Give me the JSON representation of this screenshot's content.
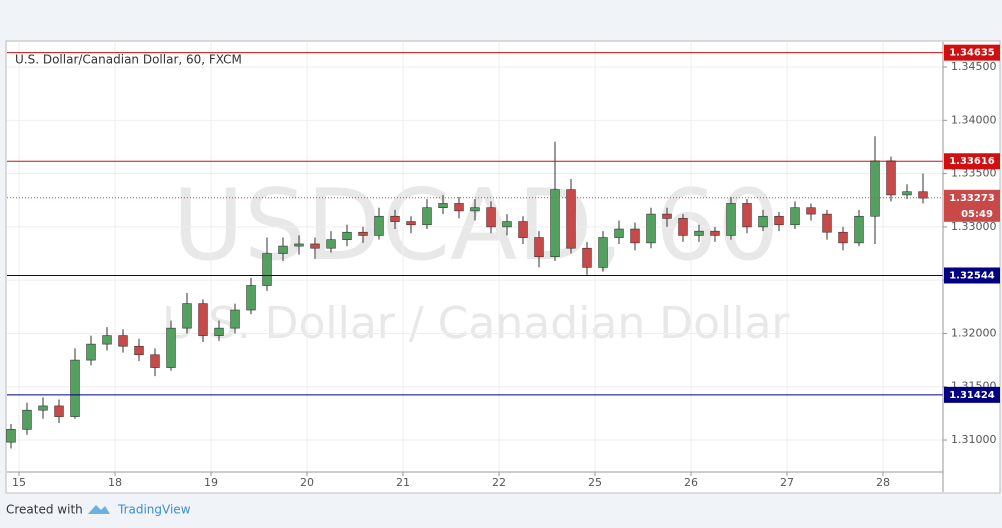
{
  "chart_data": {
    "type": "candlestick",
    "title": "U.S. Dollar/Canadian Dollar, 60, FXCM",
    "watermark": [
      "USDCAD, 60",
      "U.S. Dollar / Canadian Dollar"
    ],
    "x": [
      1,
      5,
      9,
      13,
      17,
      21,
      25,
      29,
      33,
      37,
      41,
      45,
      49,
      53,
      57,
      61,
      65,
      69,
      73,
      77,
      81,
      85,
      89,
      93,
      97,
      101,
      105,
      109,
      113,
      117,
      121,
      125,
      129,
      133,
      137,
      141,
      145,
      149,
      153,
      157,
      161,
      165,
      169,
      173,
      177,
      181,
      185,
      189,
      193,
      197,
      201,
      205,
      209,
      213,
      217,
      221,
      225,
      229
    ],
    "open": [
      1.3098,
      1.311,
      1.3128,
      1.3132,
      1.3122,
      1.3175,
      1.319,
      1.3198,
      1.3188,
      1.318,
      1.3168,
      1.3205,
      1.3228,
      1.3198,
      1.3205,
      1.3222,
      1.3245,
      1.3275,
      1.3282,
      1.3284,
      1.328,
      1.3288,
      1.3295,
      1.3292,
      1.331,
      1.3305,
      1.3302,
      1.3318,
      1.3322,
      1.3315,
      1.3318,
      1.33,
      1.3305,
      1.329,
      1.3272,
      1.3335,
      1.328,
      1.3262,
      1.329,
      1.3298,
      1.3285,
      1.3312,
      1.3308,
      1.3292,
      1.3296,
      1.3292,
      1.3322,
      1.33,
      1.331,
      1.3302,
      1.3318,
      1.3312,
      1.3295,
      1.3285,
      1.331,
      1.3362,
      1.333,
      1.3333
    ],
    "high": [
      1.3115,
      1.3135,
      1.314,
      1.3138,
      1.3186,
      1.3198,
      1.3206,
      1.3204,
      1.3195,
      1.3186,
      1.3212,
      1.3238,
      1.3232,
      1.3212,
      1.3228,
      1.3252,
      1.329,
      1.329,
      1.3292,
      1.329,
      1.3296,
      1.3302,
      1.33,
      1.3318,
      1.3316,
      1.331,
      1.3326,
      1.333,
      1.3328,
      1.3326,
      1.3324,
      1.3312,
      1.331,
      1.3296,
      1.338,
      1.3345,
      1.3286,
      1.3296,
      1.3306,
      1.3304,
      1.3318,
      1.3318,
      1.3312,
      1.3302,
      1.33,
      1.3328,
      1.3326,
      1.3316,
      1.3314,
      1.3324,
      1.3322,
      1.3316,
      1.33,
      1.3316,
      1.3385,
      1.3366,
      1.334,
      1.335
    ],
    "low": [
      1.3092,
      1.3105,
      1.312,
      1.3116,
      1.312,
      1.317,
      1.3184,
      1.3182,
      1.3174,
      1.316,
      1.3165,
      1.32,
      1.3192,
      1.3193,
      1.32,
      1.3218,
      1.324,
      1.3268,
      1.3274,
      1.327,
      1.3276,
      1.3282,
      1.3285,
      1.3288,
      1.3298,
      1.3294,
      1.3298,
      1.3312,
      1.3308,
      1.3306,
      1.3294,
      1.3292,
      1.3284,
      1.3262,
      1.3268,
      1.3275,
      1.3255,
      1.3258,
      1.3284,
      1.3278,
      1.328,
      1.33,
      1.3286,
      1.3286,
      1.3286,
      1.3288,
      1.3294,
      1.3296,
      1.3296,
      1.3298,
      1.3306,
      1.3288,
      1.3278,
      1.3282,
      1.3284,
      1.3324,
      1.3326,
      1.3322
    ],
    "close": [
      1.311,
      1.3128,
      1.3132,
      1.3122,
      1.3175,
      1.319,
      1.3198,
      1.3188,
      1.318,
      1.3168,
      1.3205,
      1.3228,
      1.3198,
      1.3205,
      1.3222,
      1.3245,
      1.3275,
      1.3282,
      1.3284,
      1.328,
      1.3288,
      1.3295,
      1.3292,
      1.331,
      1.3305,
      1.3302,
      1.3318,
      1.3322,
      1.3315,
      1.3318,
      1.33,
      1.3305,
      1.329,
      1.3272,
      1.3335,
      1.328,
      1.3262,
      1.329,
      1.3298,
      1.3285,
      1.3312,
      1.3308,
      1.3292,
      1.3296,
      1.3292,
      1.3322,
      1.33,
      1.331,
      1.3302,
      1.3318,
      1.3312,
      1.3295,
      1.3285,
      1.331,
      1.3362,
      1.333,
      1.3333,
      1.3327
    ],
    "up_color": "#53a15e",
    "down_color": "#c94848",
    "xlim": [
      0,
      234
    ],
    "ylim": [
      1.307,
      1.34735
    ],
    "xticks": [
      {
        "value": 3,
        "label": "15"
      },
      {
        "value": 27,
        "label": "18"
      },
      {
        "value": 51,
        "label": "19"
      },
      {
        "value": 75,
        "label": "20"
      },
      {
        "value": 99,
        "label": "21"
      },
      {
        "value": 123,
        "label": "22"
      },
      {
        "value": 147,
        "label": "25"
      },
      {
        "value": 171,
        "label": "26"
      },
      {
        "value": 195,
        "label": "27"
      },
      {
        "value": 219,
        "label": "28"
      }
    ],
    "yticks": [
      {
        "value": 1.31,
        "label": "1.31000"
      },
      {
        "value": 1.315,
        "label": "1.31500"
      },
      {
        "value": 1.32,
        "label": "1.32000"
      },
      {
        "value": 1.325,
        "label": "1.32500"
      },
      {
        "value": 1.33,
        "label": "1.33000"
      },
      {
        "value": 1.335,
        "label": "1.33500"
      },
      {
        "value": 1.34,
        "label": "1.34000"
      },
      {
        "value": 1.345,
        "label": "1.34500"
      }
    ],
    "grid": true,
    "levels": [
      {
        "value": 1.34635,
        "color": "#d01010"
      },
      {
        "value": 1.33616,
        "color": "#d01010"
      },
      {
        "value": 1.32544,
        "color": "#000080"
      },
      {
        "value": 1.31424,
        "color": "#000080"
      }
    ],
    "last": {
      "value": 1.33273,
      "countdown": "05:49",
      "color": "#c94848"
    }
  },
  "footer": {
    "created_with": "Created with",
    "brand": "TradingView"
  }
}
